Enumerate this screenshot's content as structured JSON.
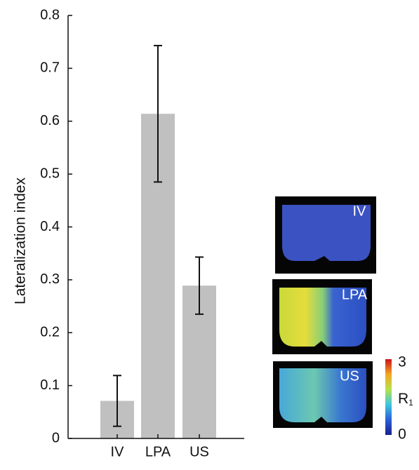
{
  "chart_data": {
    "type": "bar",
    "y_label": "Lateralization index",
    "categories": [
      "IV",
      "LPA",
      "US"
    ],
    "values": [
      0.071,
      0.614,
      0.289
    ],
    "errors": [
      0.048,
      0.129,
      0.054
    ],
    "color": "#c0c0c0",
    "ylim": [
      0,
      0.8
    ],
    "yticks": [
      0,
      0.1,
      0.2,
      0.3,
      0.4,
      0.5,
      0.6,
      0.7,
      0.8
    ]
  },
  "images": {
    "labels": [
      "IV",
      "LPA",
      "US"
    ]
  },
  "colorbar": {
    "label": "R",
    "subscript": "1",
    "min": 0,
    "max": 3
  }
}
